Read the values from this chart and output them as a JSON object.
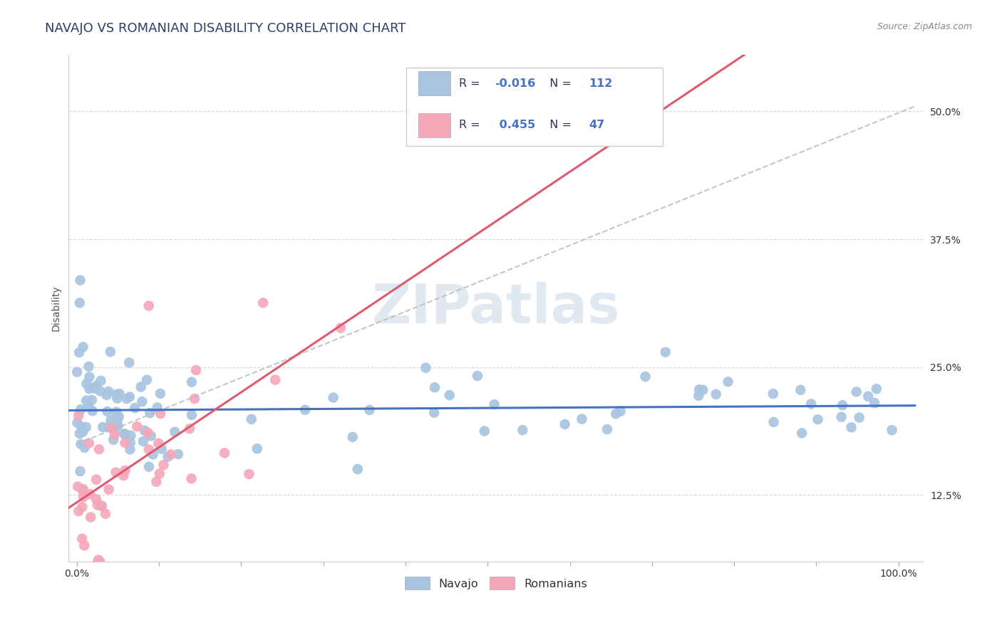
{
  "title": "NAVAJO VS ROMANIAN DISABILITY CORRELATION CHART",
  "source": "Source: ZipAtlas.com",
  "ylabel": "Disability",
  "navajo_R": -0.016,
  "navajo_N": 112,
  "romanian_R": 0.455,
  "romanian_N": 47,
  "navajo_color": "#a8c4e0",
  "romanian_color": "#f4a7b9",
  "navajo_line_color": "#4472C4",
  "romanian_line_color": "#e05a6e",
  "ref_line_color": "#b8b8b8",
  "watermark": "ZIPatlas",
  "watermark_color": "#c8d8e8",
  "legend_R_color": "#4472C4",
  "legend_dark_color": "#333355"
}
